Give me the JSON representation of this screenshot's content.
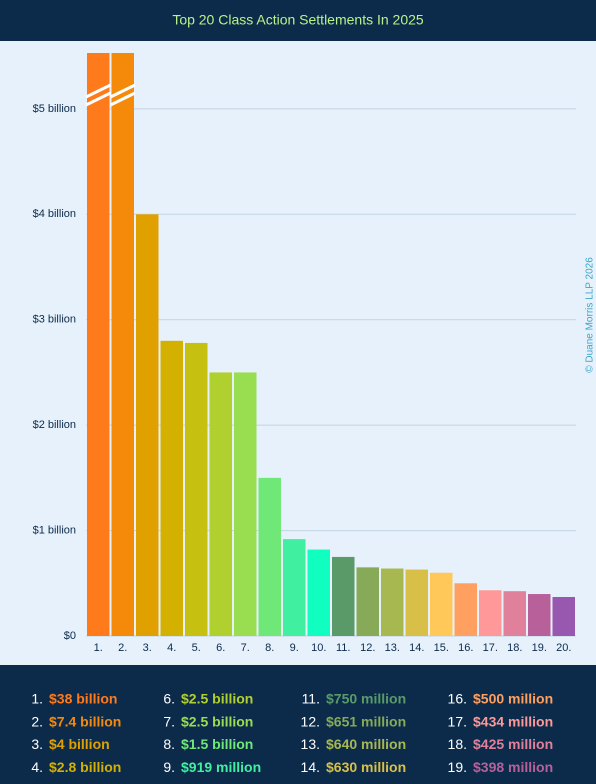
{
  "chart_data": {
    "type": "bar",
    "title": "Top 20 Class Action Settlements In 2025",
    "categories": [
      "1.",
      "2.",
      "3.",
      "4.",
      "5.",
      "6.",
      "7.",
      "8.",
      "9.",
      "10.",
      "11.",
      "12.",
      "13.",
      "14.",
      "15.",
      "16.",
      "17.",
      "18.",
      "19.",
      "20."
    ],
    "values": [
      38,
      7.4,
      4,
      2.8,
      2.78,
      2.5,
      2.5,
      1.5,
      0.919,
      0.82,
      0.75,
      0.651,
      0.64,
      0.63,
      0.6,
      0.5,
      0.434,
      0.425,
      0.398,
      0.37
    ],
    "value_labels": [
      "$38 billion",
      "$7.4 billion",
      "$4 billion",
      "$2.8 billion",
      null,
      "$2.5 billion",
      "$2.5 billion",
      "$1.5 billion",
      "$919 million",
      null,
      "$750 million",
      "$651 million",
      "$640 million",
      "$630 million",
      null,
      "$500 million",
      "$434 million",
      "$425 million",
      "$398 million",
      null
    ],
    "colors": [
      "#ff7a1a",
      "#f58a0a",
      "#e0a000",
      "#d4b000",
      "#c6c010",
      "#b0d030",
      "#98de50",
      "#70e878",
      "#40f0a0",
      "#10ffc0",
      "#5a9a68",
      "#86aa58",
      "#a8b850",
      "#d8c048",
      "#ffc858",
      "#ff9f60",
      "#ff9898",
      "#e0809a",
      "#b8609a",
      "#9858b0"
    ],
    "ylim": [
      0,
      5.53
    ],
    "yticks": [
      {
        "value": 0,
        "label": "$0"
      },
      {
        "value": 1,
        "label": "$1 billion"
      },
      {
        "value": 2,
        "label": "$2 billion"
      },
      {
        "value": 3,
        "label": "$3 billion"
      },
      {
        "value": 4,
        "label": "$4 billion"
      },
      {
        "value": 5,
        "label": "$5 billion"
      }
    ],
    "grid": true,
    "annotation": "© Duane Morris LLP 2026"
  }
}
